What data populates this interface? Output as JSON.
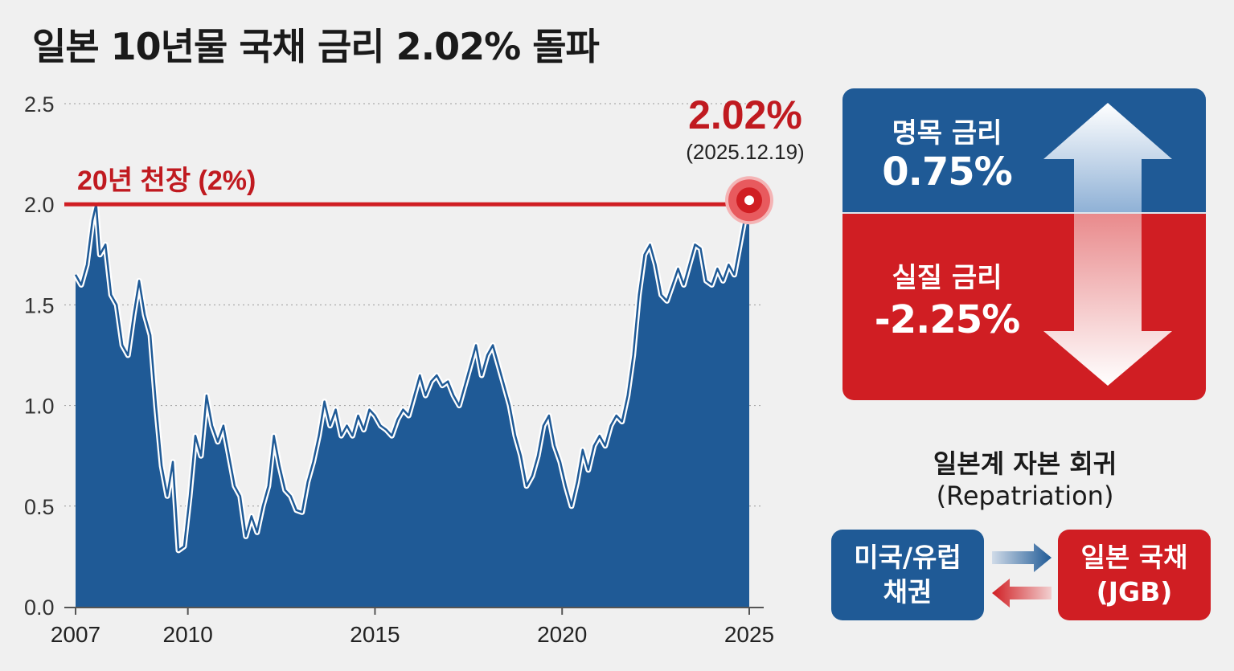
{
  "title": "일본 10년물 국채 금리 2.02% 돌파",
  "chart_data": {
    "type": "area",
    "x_ticks": [
      "2007",
      "2010",
      "2015",
      "2020",
      "2025"
    ],
    "y_ticks": [
      "0.0",
      "0.5",
      "1.0",
      "1.5",
      "2.0",
      "2.5"
    ],
    "ylim": [
      0,
      2.5
    ],
    "xlim": [
      2007,
      2025
    ],
    "grid": "horizontal dotted",
    "reference_line": {
      "value": 2.0,
      "label": "20년 천장 (2%)"
    },
    "peak_annotation": {
      "value_label": "2.02%",
      "date_label": "(2025.12.19)"
    },
    "series": [
      {
        "points": [
          [
            2007.0,
            1.65
          ],
          [
            2007.15,
            1.6
          ],
          [
            2007.3,
            1.7
          ],
          [
            2007.45,
            1.92
          ],
          [
            2007.55,
            2.0
          ],
          [
            2007.65,
            1.75
          ],
          [
            2007.8,
            1.8
          ],
          [
            2007.95,
            1.55
          ],
          [
            2008.1,
            1.5
          ],
          [
            2008.25,
            1.3
          ],
          [
            2008.4,
            1.25
          ],
          [
            2008.55,
            1.45
          ],
          [
            2008.7,
            1.62
          ],
          [
            2008.85,
            1.45
          ],
          [
            2009.0,
            1.35
          ],
          [
            2009.15,
            1.0
          ],
          [
            2009.3,
            0.7
          ],
          [
            2009.45,
            0.55
          ],
          [
            2009.6,
            0.72
          ],
          [
            2009.75,
            0.28
          ],
          [
            2009.9,
            0.3
          ],
          [
            2010.05,
            0.55
          ],
          [
            2010.2,
            0.85
          ],
          [
            2010.35,
            0.75
          ],
          [
            2010.5,
            1.05
          ],
          [
            2010.65,
            0.9
          ],
          [
            2010.8,
            0.82
          ],
          [
            2010.95,
            0.9
          ],
          [
            2011.1,
            0.75
          ],
          [
            2011.25,
            0.6
          ],
          [
            2011.4,
            0.55
          ],
          [
            2011.55,
            0.35
          ],
          [
            2011.7,
            0.45
          ],
          [
            2011.85,
            0.37
          ],
          [
            2012.0,
            0.5
          ],
          [
            2012.15,
            0.6
          ],
          [
            2012.3,
            0.85
          ],
          [
            2012.45,
            0.7
          ],
          [
            2012.6,
            0.58
          ],
          [
            2012.75,
            0.55
          ],
          [
            2012.9,
            0.48
          ],
          [
            2013.05,
            0.47
          ],
          [
            2013.2,
            0.62
          ],
          [
            2013.35,
            0.72
          ],
          [
            2013.5,
            0.85
          ],
          [
            2013.65,
            1.02
          ],
          [
            2013.8,
            0.9
          ],
          [
            2013.95,
            0.98
          ],
          [
            2014.1,
            0.85
          ],
          [
            2014.25,
            0.9
          ],
          [
            2014.4,
            0.85
          ],
          [
            2014.55,
            0.95
          ],
          [
            2014.7,
            0.88
          ],
          [
            2014.85,
            0.98
          ],
          [
            2015.0,
            0.95
          ],
          [
            2015.15,
            0.9
          ],
          [
            2015.3,
            0.88
          ],
          [
            2015.45,
            0.85
          ],
          [
            2015.6,
            0.93
          ],
          [
            2015.75,
            0.98
          ],
          [
            2015.9,
            0.95
          ],
          [
            2016.05,
            1.05
          ],
          [
            2016.2,
            1.15
          ],
          [
            2016.35,
            1.05
          ],
          [
            2016.5,
            1.12
          ],
          [
            2016.65,
            1.15
          ],
          [
            2016.8,
            1.1
          ],
          [
            2016.95,
            1.12
          ],
          [
            2017.1,
            1.05
          ],
          [
            2017.25,
            1.0
          ],
          [
            2017.4,
            1.1
          ],
          [
            2017.55,
            1.2
          ],
          [
            2017.7,
            1.3
          ],
          [
            2017.85,
            1.15
          ],
          [
            2018.0,
            1.25
          ],
          [
            2018.15,
            1.3
          ],
          [
            2018.3,
            1.2
          ],
          [
            2018.45,
            1.1
          ],
          [
            2018.6,
            1.0
          ],
          [
            2018.75,
            0.85
          ],
          [
            2018.9,
            0.75
          ],
          [
            2019.05,
            0.6
          ],
          [
            2019.2,
            0.65
          ],
          [
            2019.35,
            0.75
          ],
          [
            2019.5,
            0.9
          ],
          [
            2019.65,
            0.95
          ],
          [
            2019.8,
            0.8
          ],
          [
            2019.95,
            0.72
          ],
          [
            2020.1,
            0.6
          ],
          [
            2020.25,
            0.5
          ],
          [
            2020.4,
            0.62
          ],
          [
            2020.55,
            0.78
          ],
          [
            2020.7,
            0.68
          ],
          [
            2020.85,
            0.8
          ],
          [
            2021.0,
            0.85
          ],
          [
            2021.15,
            0.8
          ],
          [
            2021.3,
            0.9
          ],
          [
            2021.45,
            0.95
          ],
          [
            2021.6,
            0.92
          ],
          [
            2021.75,
            1.05
          ],
          [
            2021.9,
            1.25
          ],
          [
            2022.05,
            1.55
          ],
          [
            2022.2,
            1.75
          ],
          [
            2022.35,
            1.8
          ],
          [
            2022.5,
            1.7
          ],
          [
            2022.65,
            1.55
          ],
          [
            2022.8,
            1.52
          ],
          [
            2022.95,
            1.6
          ],
          [
            2023.1,
            1.68
          ],
          [
            2023.25,
            1.6
          ],
          [
            2023.4,
            1.7
          ],
          [
            2023.55,
            1.8
          ],
          [
            2023.7,
            1.78
          ],
          [
            2023.85,
            1.62
          ],
          [
            2024.0,
            1.6
          ],
          [
            2024.15,
            1.68
          ],
          [
            2024.3,
            1.62
          ],
          [
            2024.45,
            1.7
          ],
          [
            2024.6,
            1.65
          ],
          [
            2024.75,
            1.8
          ],
          [
            2024.9,
            1.95
          ],
          [
            2025.0,
            2.02
          ]
        ]
      }
    ]
  },
  "rates": {
    "nominal_label": "명목 금리",
    "nominal_value": "0.75%",
    "real_label": "실질 금리",
    "real_value": "-2.25%"
  },
  "repatriation": {
    "title_ko": "일본계 자본 회귀",
    "title_en": "(Repatriation)",
    "us_eu_line1": "미국/유럽",
    "us_eu_line2": "채권",
    "jgb_line1": "일본 국채",
    "jgb_line2": "(JGB)"
  },
  "colors": {
    "navy": "#1f5a96",
    "red": "#d01e23",
    "title_text": "#1a1a1a",
    "background": "#f0f0f0"
  }
}
